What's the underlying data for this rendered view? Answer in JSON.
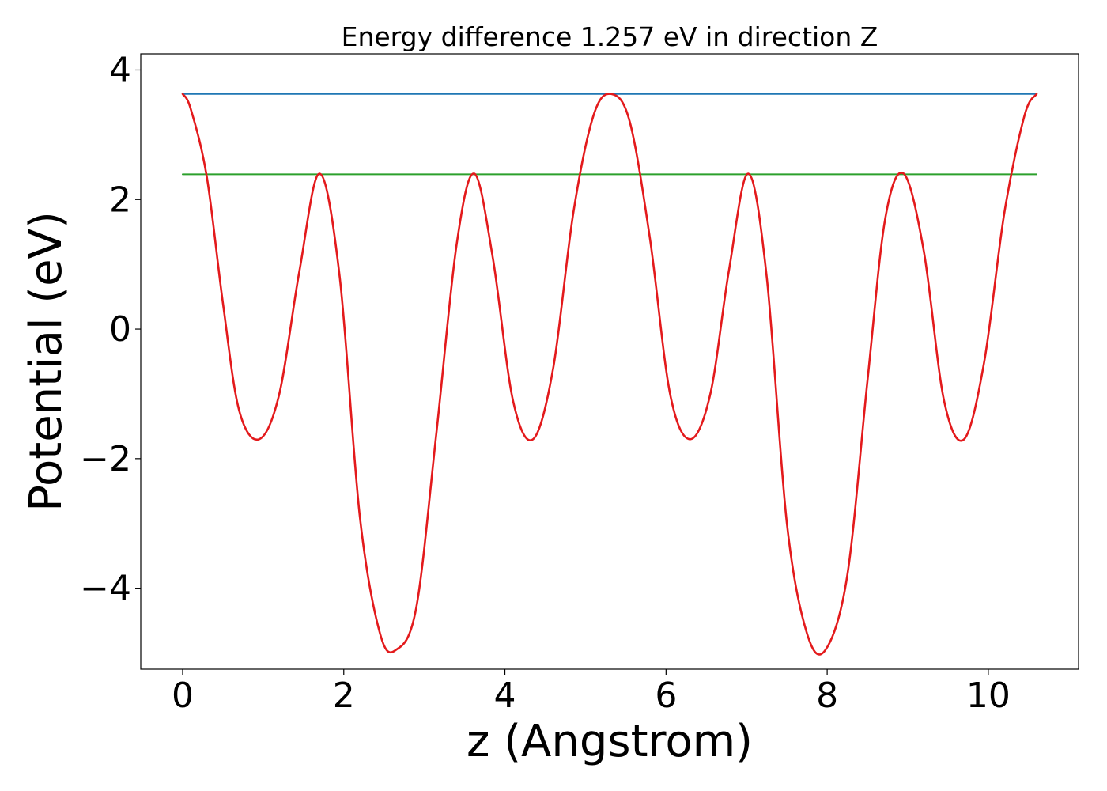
{
  "chart_data": {
    "type": "line",
    "title": "Energy difference 1.257 eV in direction Z",
    "xlabel": "z (Angstrom)",
    "ylabel": "Potential (eV)",
    "xlim": [
      -0.52,
      11.12
    ],
    "ylim": [
      -5.25,
      4.25
    ],
    "x_ticks": [
      0,
      2,
      4,
      6,
      8,
      10
    ],
    "x_tick_labels": [
      "0",
      "2",
      "4",
      "6",
      "8",
      "10"
    ],
    "y_ticks": [
      4,
      2,
      0,
      -2,
      -4
    ],
    "y_tick_labels": [
      "4",
      "2",
      "0",
      "−2",
      "−4"
    ],
    "grid": false,
    "colors": {
      "potential": "#e31a1c",
      "max_level": "#1f77b4",
      "secondary_level": "#2ca02c"
    },
    "series": [
      {
        "key": "potential",
        "x": [
          0.0,
          0.1,
          0.3,
          0.5,
          0.7,
          0.95,
          1.2,
          1.45,
          1.7,
          1.95,
          2.2,
          2.45,
          2.65,
          2.9,
          3.15,
          3.4,
          3.62,
          3.85,
          4.1,
          4.35,
          4.6,
          4.85,
          5.1,
          5.32,
          5.55,
          5.8,
          6.05,
          6.3,
          6.55,
          6.78,
          7.02,
          7.25,
          7.5,
          7.75,
          7.98,
          8.25,
          8.5,
          8.72,
          8.95,
          9.2,
          9.45,
          9.7,
          9.95,
          10.2,
          10.45,
          10.6
        ],
        "y": [
          3.63,
          3.4,
          2.35,
          0.4,
          -1.25,
          -1.7,
          -1.0,
          0.9,
          2.4,
          0.8,
          -2.9,
          -4.7,
          -4.95,
          -4.3,
          -1.6,
          1.3,
          2.4,
          1.1,
          -1.1,
          -1.7,
          -0.6,
          1.8,
          3.3,
          3.63,
          3.2,
          1.4,
          -1.0,
          -1.7,
          -1.0,
          0.9,
          2.4,
          0.8,
          -3.0,
          -4.7,
          -4.95,
          -3.8,
          -0.8,
          1.7,
          2.4,
          1.2,
          -1.1,
          -1.7,
          -0.5,
          1.8,
          3.3,
          3.63
        ]
      },
      {
        "key": "max_level",
        "x": [
          0.0,
          10.6
        ],
        "y": [
          3.63,
          3.63
        ]
      },
      {
        "key": "secondary_level",
        "x": [
          0.0,
          10.6
        ],
        "y": [
          2.39,
          2.39
        ]
      }
    ]
  }
}
